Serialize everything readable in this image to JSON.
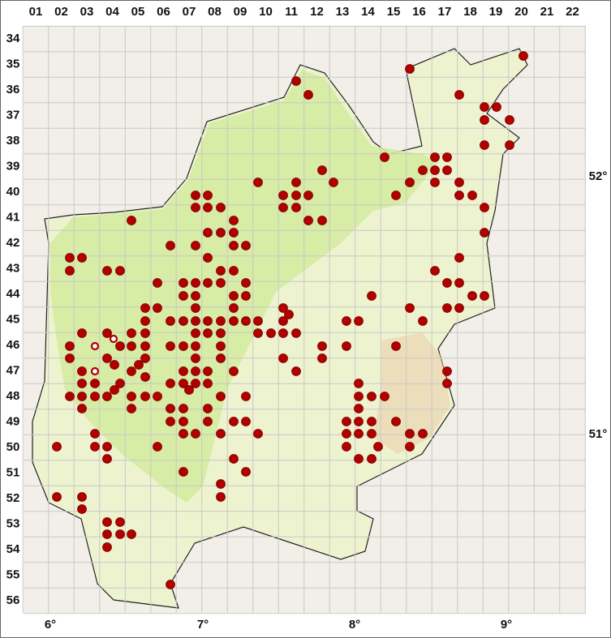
{
  "column_labels": [
    "01",
    "02",
    "03",
    "04",
    "05",
    "06",
    "07",
    "08",
    "09",
    "10",
    "11",
    "12",
    "13",
    "14",
    "15",
    "16",
    "17",
    "18",
    "19",
    "20",
    "21",
    "22"
  ],
  "row_labels": [
    "34",
    "35",
    "36",
    "37",
    "38",
    "39",
    "40",
    "41",
    "42",
    "43",
    "44",
    "45",
    "46",
    "47",
    "48",
    "49",
    "50",
    "51",
    "52",
    "53",
    "54",
    "55",
    "56"
  ],
  "longitude_labels": [
    "6°",
    "7°",
    "8°",
    "9°"
  ],
  "latitude_labels": [
    "52°",
    "51°"
  ]
}
